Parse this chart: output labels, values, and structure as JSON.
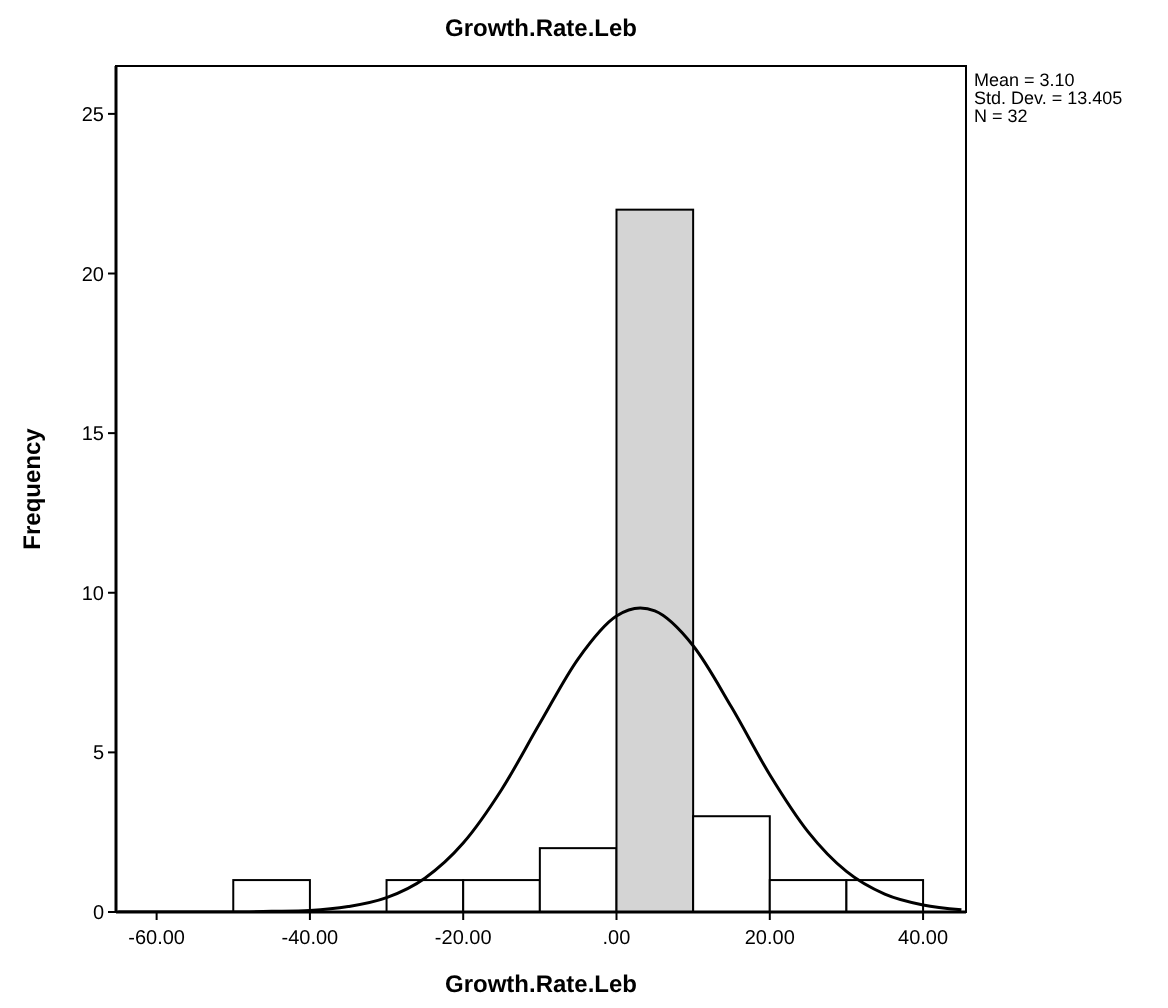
{
  "chart_data": {
    "type": "histogram",
    "title": "Growth.Rate.Leb",
    "xlabel": "Growth.Rate.Leb",
    "ylabel": "Frequency",
    "bins": [
      -50,
      -40,
      -30,
      -20,
      -10,
      0,
      10,
      20,
      30,
      40
    ],
    "values": [
      1,
      0,
      1,
      1,
      2,
      22,
      3,
      1,
      1
    ],
    "colors": [
      "#ffffff",
      "#ffffff",
      "#ffffff",
      "#ffffff",
      "#ffffff",
      "#d4d4d4",
      "#ffffff",
      "#ffffff",
      "#ffffff"
    ],
    "series": [
      {
        "type": "line",
        "color": "#000000",
        "x": [
          -65,
          -60,
          -55,
          -50,
          -45,
          -40,
          -35,
          -30,
          -25,
          -20,
          -15,
          -10,
          -5,
          0,
          3.1,
          5,
          10,
          15,
          20,
          25,
          30,
          35,
          40,
          45
        ],
        "values": [
          0,
          0,
          0,
          0,
          0.02,
          0.05,
          0.17,
          0.45,
          1.06,
          2.16,
          3.83,
          5.91,
          7.93,
          9.27,
          9.52,
          9.43,
          8.34,
          6.42,
          4.3,
          2.51,
          1.27,
          0.56,
          0.22,
          0.07
        ]
      }
    ],
    "xlim": [
      -65.3,
      45.6
    ],
    "ylim": [
      0,
      26.5
    ],
    "xticks": [
      {
        "value": -60,
        "label": "-60.00"
      },
      {
        "value": -40,
        "label": "-40.00"
      },
      {
        "value": -20,
        "label": "-20.00"
      },
      {
        "value": 0,
        "label": ".00"
      },
      {
        "value": 20,
        "label": "20.00"
      },
      {
        "value": 40,
        "label": "40.00"
      }
    ],
    "yticks": [
      0,
      5,
      10,
      15,
      20,
      25
    ],
    "annotations": [
      "Mean = 3.10",
      "Std. Dev. = 13.405",
      "N = 32"
    ]
  }
}
